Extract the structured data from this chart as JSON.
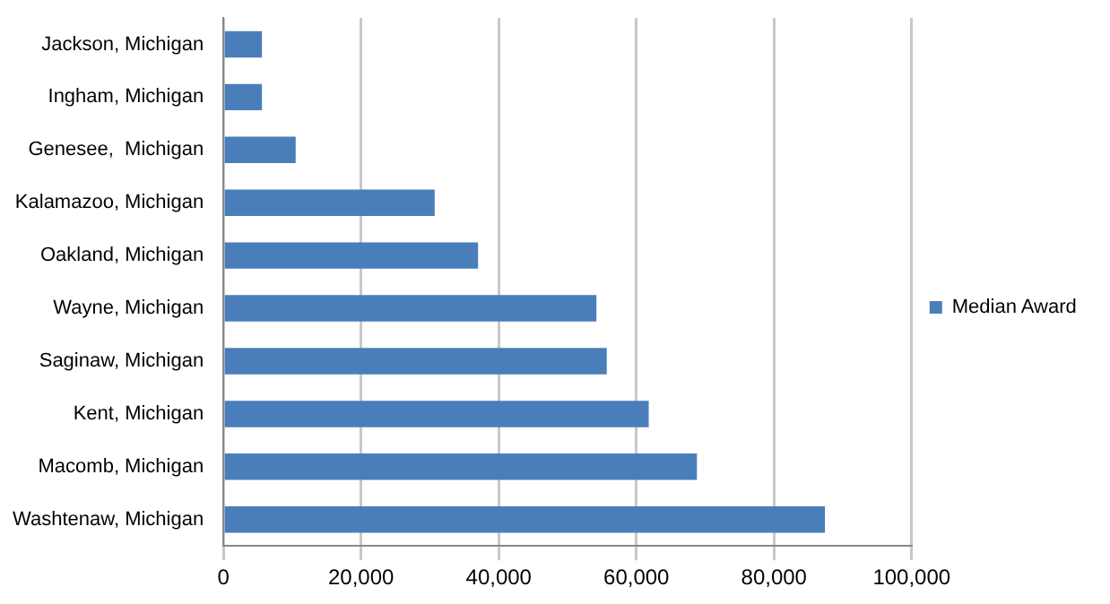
{
  "chart_data": {
    "type": "bar",
    "orientation": "horizontal",
    "categories": [
      "Jackson, Michigan",
      "Ingham, Michigan",
      "Genesee,  Michigan",
      "Kalamazoo, Michigan",
      "Oakland, Michigan",
      "Wayne, Michigan",
      "Saginaw, Michigan",
      "Kent, Michigan",
      "Macomb, Michigan",
      "Washtenaw, Michigan"
    ],
    "series": [
      {
        "name": "Median Award",
        "color": "#4a7ebb",
        "values": [
          5600,
          5600,
          10500,
          30700,
          37000,
          54200,
          55700,
          61800,
          68800,
          87400
        ]
      }
    ],
    "xlim": [
      0,
      100000
    ],
    "xticks": [
      {
        "value": 0,
        "label": "0"
      },
      {
        "value": 20000,
        "label": "20,000"
      },
      {
        "value": 40000,
        "label": "40,000"
      },
      {
        "value": 60000,
        "label": "60,000"
      },
      {
        "value": 80000,
        "label": "80,000"
      },
      {
        "value": 100000,
        "label": "100,000"
      }
    ],
    "grid": "x",
    "legend": "right"
  }
}
